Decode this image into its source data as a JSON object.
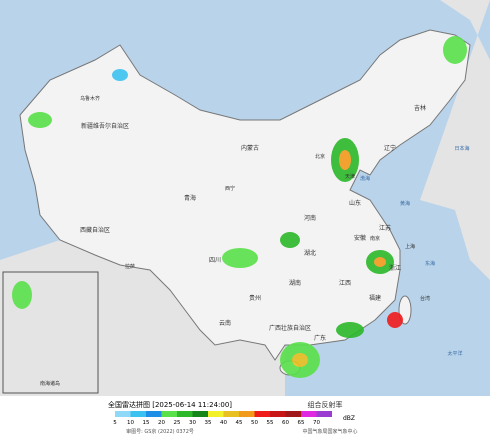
{
  "header": {
    "title": "全国雷达拼图 [2025-06-14 11:24:00]",
    "product": "组合反射率"
  },
  "map": {
    "labels": [
      "新疆维吾尔自治区",
      "西藏自治区",
      "青海",
      "内蒙古",
      "四川",
      "湖北",
      "湖南",
      "江西",
      "广西壮族自治区",
      "云南",
      "贵州",
      "山东",
      "河南",
      "广东",
      "福建",
      "浙江",
      "安徽",
      "江苏",
      "吉林",
      "辽宁",
      "乌鲁木齐",
      "拉萨",
      "西宁",
      "北京",
      "天津",
      "上海",
      "南京",
      "台湾",
      "东海",
      "黄海",
      "渤海",
      "日本海",
      "太平洋",
      "南海诸岛"
    ]
  },
  "legend": {
    "items": [
      {
        "value": 5,
        "color": "#8fd8f8"
      },
      {
        "value": 10,
        "color": "#3cc2f0"
      },
      {
        "value": 15,
        "color": "#1e8ee6"
      },
      {
        "value": 20,
        "color": "#5ae04a"
      },
      {
        "value": 25,
        "color": "#2cb82a"
      },
      {
        "value": 30,
        "color": "#14861a"
      },
      {
        "value": 35,
        "color": "#f2f028"
      },
      {
        "value": 40,
        "color": "#e8c020"
      },
      {
        "value": 45,
        "color": "#f29a1c"
      },
      {
        "value": 50,
        "color": "#f01c1c"
      },
      {
        "value": 55,
        "color": "#c81616"
      },
      {
        "value": 60,
        "color": "#a01818"
      },
      {
        "value": 65,
        "color": "#e028e0"
      },
      {
        "value": 70,
        "color": "#9a3cd0"
      }
    ],
    "unit": "dBZ"
  },
  "footer": {
    "approval": "审图号: GS京 (2022) 0372号",
    "agency": "中国气象局国家气象中心"
  }
}
